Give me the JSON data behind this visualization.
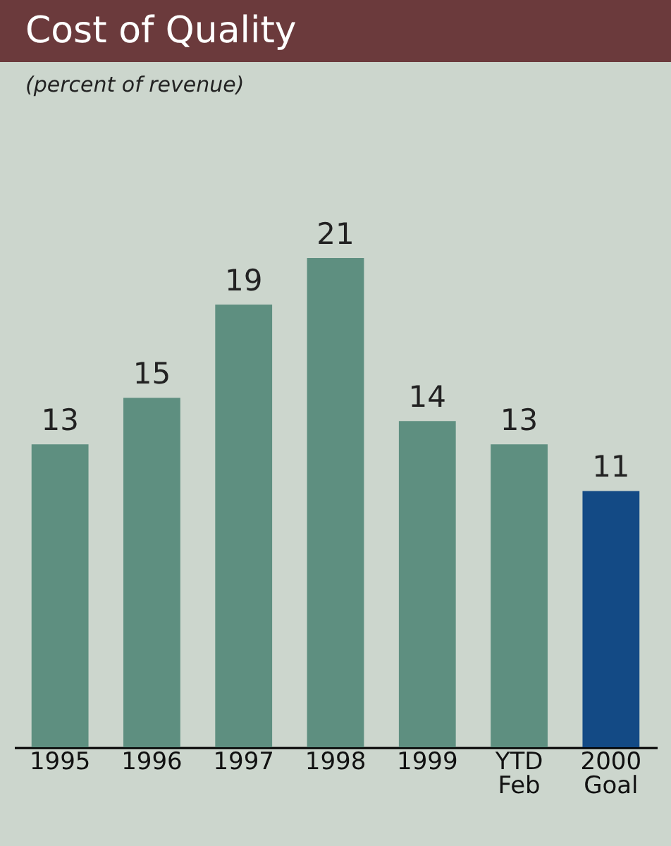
{
  "chart_data": {
    "type": "bar",
    "title": "Cost of Quality",
    "subtitle": "(percent of revenue)",
    "categories": [
      "1995",
      "1996",
      "1997",
      "1998",
      "1999",
      "YTD\nFeb",
      "2000\nGoal"
    ],
    "values": [
      13,
      15,
      19,
      21,
      14,
      13,
      11
    ],
    "colors": [
      "#5e8f80",
      "#5e8f80",
      "#5e8f80",
      "#5e8f80",
      "#5e8f80",
      "#5e8f80",
      "#134a85"
    ],
    "data_labels": true,
    "grid": false
  }
}
